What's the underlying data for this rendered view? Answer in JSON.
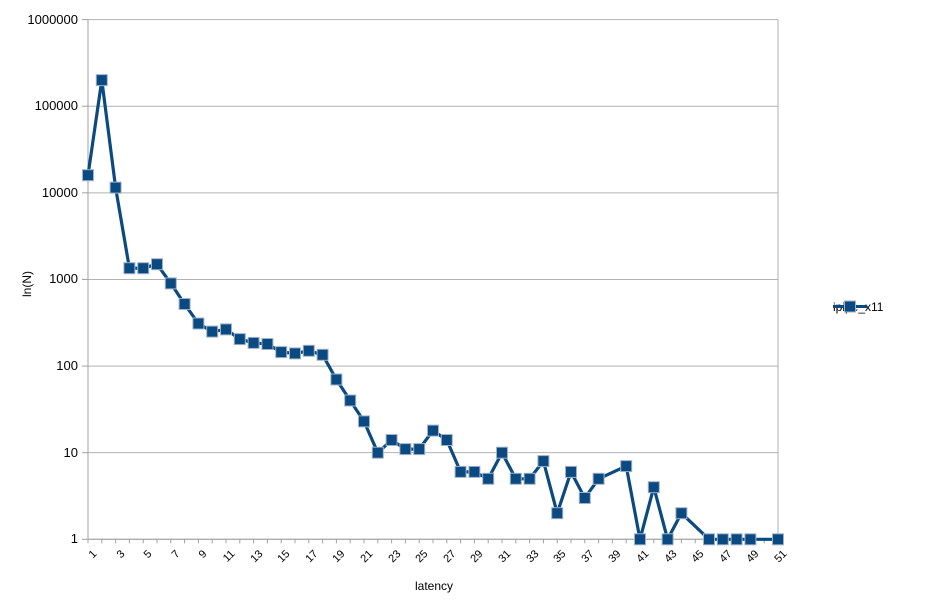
{
  "chart_data": {
    "type": "line",
    "title": "",
    "xlabel": "latency",
    "ylabel": "ln(N)",
    "y_scale": "log",
    "ylim": [
      1,
      1000000
    ],
    "y_ticks": [
      1,
      10,
      100,
      1000,
      10000,
      100000,
      1000000
    ],
    "x_start": 1,
    "x_end": 51,
    "x_tick_labels": [
      1,
      3,
      5,
      7,
      9,
      11,
      13,
      15,
      17,
      19,
      21,
      23,
      25,
      27,
      29,
      31,
      33,
      35,
      37,
      39,
      41,
      43,
      45,
      47,
      49,
      51
    ],
    "grid": "horizontal",
    "legend_position": "right",
    "missing_policy": "line continues through missing points (x=39, 45, 50 have no markers)",
    "series": [
      {
        "name": "ipipe_x11",
        "marker": "square",
        "values": [
          16000,
          200000,
          11500,
          1350,
          1350,
          1500,
          900,
          520,
          310,
          250,
          265,
          205,
          185,
          180,
          145,
          140,
          150,
          135,
          70,
          40,
          23,
          10,
          14,
          11,
          11,
          18,
          14,
          6,
          6,
          5,
          10,
          5,
          5,
          8,
          2,
          6,
          3,
          5,
          null,
          7,
          1,
          4,
          1,
          2,
          null,
          1,
          1,
          1,
          1,
          null,
          1
        ]
      }
    ]
  },
  "colors": {
    "background": "#ffffff",
    "grid": "#b2b2b2",
    "axis": "#a0a0a0",
    "series": "#0b4a80",
    "marker_edge": "#9fb1cc",
    "text": "#000000"
  },
  "legend": {
    "label": "ipipe_x11"
  }
}
